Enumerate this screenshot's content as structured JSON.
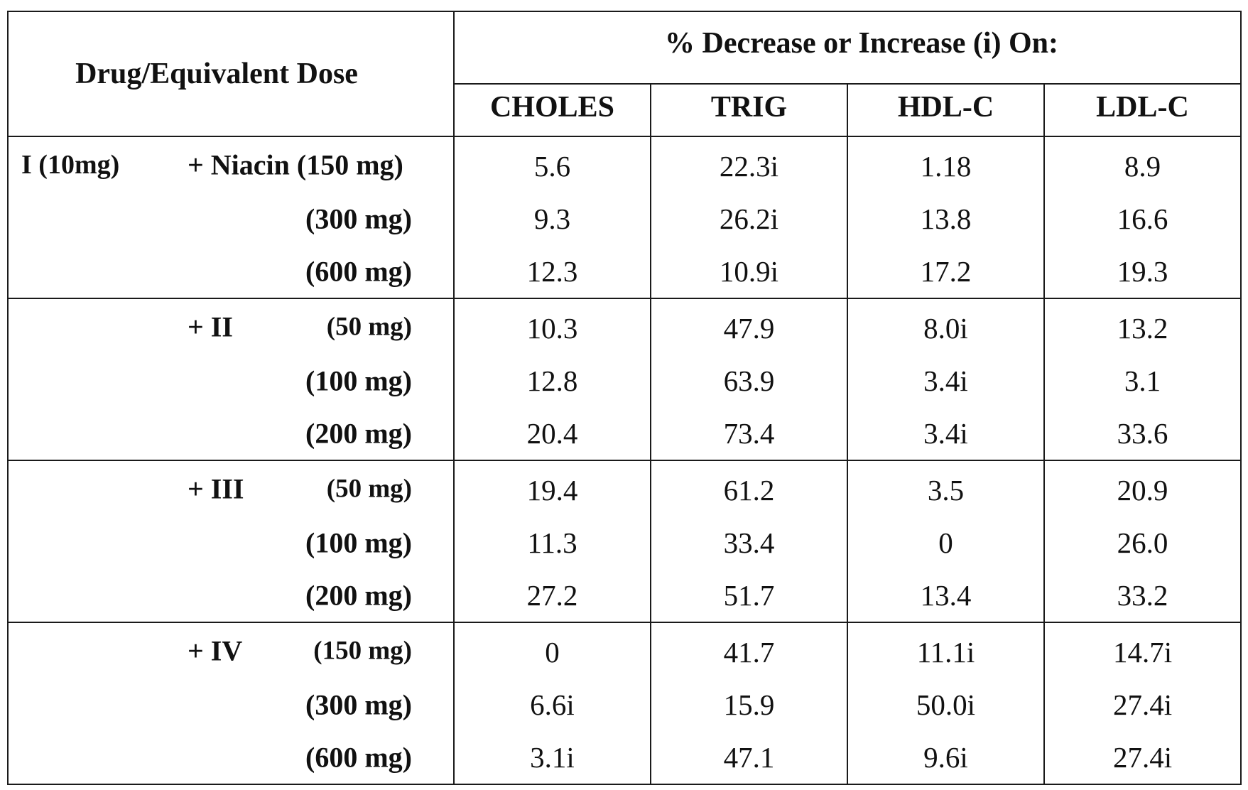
{
  "table": {
    "drug_header": "Drug/Equivalent Dose",
    "effect_header": "% Decrease or Increase (i) On:",
    "columns": [
      "CHOLES",
      "TRIG",
      "HDL-C",
      "LDL-C"
    ],
    "rows": [
      {
        "prefix": "I (10mg)",
        "agent": "+ Niacin (150 mg)",
        "dose": "",
        "values": [
          "5.6",
          "22.3i",
          "1.18",
          "8.9"
        ]
      },
      {
        "prefix": "",
        "agent": "",
        "dose": "(300 mg)",
        "values": [
          "9.3",
          "26.2i",
          "13.8",
          "16.6"
        ]
      },
      {
        "prefix": "",
        "agent": "",
        "dose": "(600 mg)",
        "values": [
          "12.3",
          "10.9i",
          "17.2",
          "19.3"
        ]
      },
      {
        "prefix": "",
        "agent": "+ II",
        "dose": "(50 mg)",
        "values": [
          "10.3",
          "47.9",
          "8.0i",
          "13.2"
        ]
      },
      {
        "prefix": "",
        "agent": "",
        "dose": "(100 mg)",
        "values": [
          "12.8",
          "63.9",
          "3.4i",
          "3.1"
        ]
      },
      {
        "prefix": "",
        "agent": "",
        "dose": "(200 mg)",
        "values": [
          "20.4",
          "73.4",
          "3.4i",
          "33.6"
        ]
      },
      {
        "prefix": "",
        "agent": "+ III",
        "dose": "(50 mg)",
        "values": [
          "19.4",
          "61.2",
          "3.5",
          "20.9"
        ]
      },
      {
        "prefix": "",
        "agent": "",
        "dose": "(100 mg)",
        "values": [
          "11.3",
          "33.4",
          "0",
          "26.0"
        ]
      },
      {
        "prefix": "",
        "agent": "",
        "dose": "(200 mg)",
        "values": [
          "27.2",
          "51.7",
          "13.4",
          "33.2"
        ]
      },
      {
        "prefix": "",
        "agent": "+ IV",
        "dose": "(150 mg)",
        "values": [
          "0",
          "41.7",
          "11.1i",
          "14.7i"
        ]
      },
      {
        "prefix": "",
        "agent": "",
        "dose": "(300 mg)",
        "values": [
          "6.6i",
          "15.9",
          "50.0i",
          "27.4i"
        ]
      },
      {
        "prefix": "",
        "agent": "",
        "dose": "(600 mg)",
        "values": [
          "3.1i",
          "47.1",
          "9.6i",
          "27.4i"
        ]
      }
    ]
  }
}
